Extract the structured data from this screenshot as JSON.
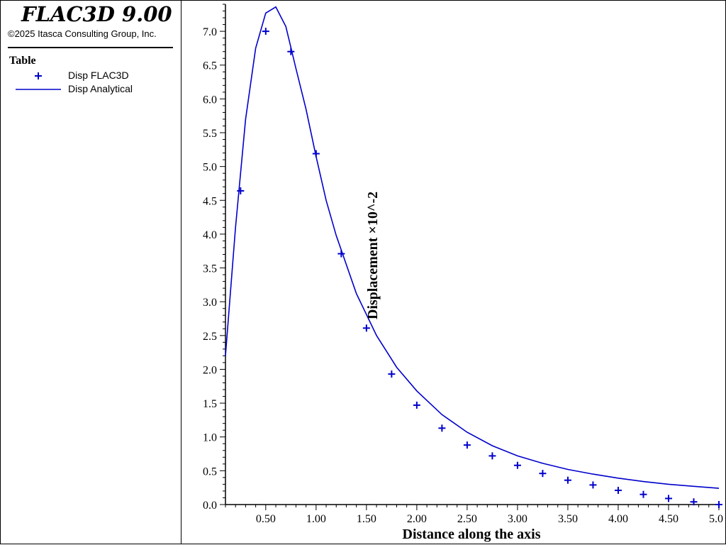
{
  "app": {
    "title": "FLAC3D 9.00",
    "copyright": "©2025 Itasca Consulting Group, Inc."
  },
  "legend": {
    "title": "Table",
    "items": [
      {
        "label": "Disp FLAC3D",
        "marker": "plus",
        "color": "#0000cc"
      },
      {
        "label": "Disp Analytical",
        "marker": "line",
        "color": "#0000cc"
      }
    ]
  },
  "chart_data": {
    "type": "scatter",
    "xlabel": "Distance along the axis",
    "ylabel": "Displacement  ×10^-2",
    "xlim": [
      0.1,
      5.0
    ],
    "ylim": [
      0.0,
      7.4
    ],
    "x_ticks": [
      0.5,
      1.0,
      1.5,
      2.0,
      2.5,
      3.0,
      3.5,
      4.0,
      4.5,
      5.0
    ],
    "x_tick_labels": [
      "0.50",
      "1.00",
      "1.50",
      "2.00",
      "2.50",
      "3.00",
      "3.50",
      "4.00",
      "4.50",
      "5.0"
    ],
    "y_ticks": [
      0.0,
      0.5,
      1.0,
      1.5,
      2.0,
      2.5,
      3.0,
      3.5,
      4.0,
      4.5,
      5.0,
      5.5,
      6.0,
      6.5,
      7.0
    ],
    "y_tick_labels": [
      "0.0",
      "0.5",
      "1.0",
      "1.5",
      "2.0",
      "2.5",
      "3.0",
      "3.5",
      "4.0",
      "4.5",
      "5.0",
      "5.5",
      "6.0",
      "6.5",
      "7.0"
    ],
    "grid": false,
    "color": "#0000cc",
    "series": [
      {
        "name": "Disp FLAC3D",
        "marker": "plus",
        "x": [
          0.25,
          0.5,
          0.75,
          1.0,
          1.25,
          1.5,
          1.75,
          2.0,
          2.25,
          2.5,
          2.75,
          3.0,
          3.25,
          3.5,
          3.75,
          4.0,
          4.25,
          4.5,
          4.75,
          5.0
        ],
        "y": [
          4.64,
          7.0,
          6.7,
          5.19,
          3.71,
          2.61,
          1.93,
          1.47,
          1.13,
          0.88,
          0.72,
          0.58,
          0.46,
          0.36,
          0.29,
          0.21,
          0.15,
          0.09,
          0.04,
          0.0
        ]
      },
      {
        "name": "Disp Analytical",
        "marker": "line",
        "x": [
          0.1,
          0.2,
          0.3,
          0.4,
          0.5,
          0.6,
          0.7,
          0.8,
          0.9,
          1.0,
          1.1,
          1.2,
          1.4,
          1.6,
          1.8,
          2.0,
          2.25,
          2.5,
          2.75,
          3.0,
          3.25,
          3.5,
          3.75,
          4.0,
          4.25,
          4.5,
          4.75,
          5.0
        ],
        "y": [
          2.2,
          4.1,
          5.7,
          6.75,
          7.27,
          7.36,
          7.07,
          6.45,
          5.85,
          5.15,
          4.5,
          3.98,
          3.12,
          2.5,
          2.03,
          1.68,
          1.33,
          1.07,
          0.87,
          0.72,
          0.61,
          0.52,
          0.45,
          0.39,
          0.34,
          0.3,
          0.27,
          0.24
        ]
      }
    ]
  }
}
